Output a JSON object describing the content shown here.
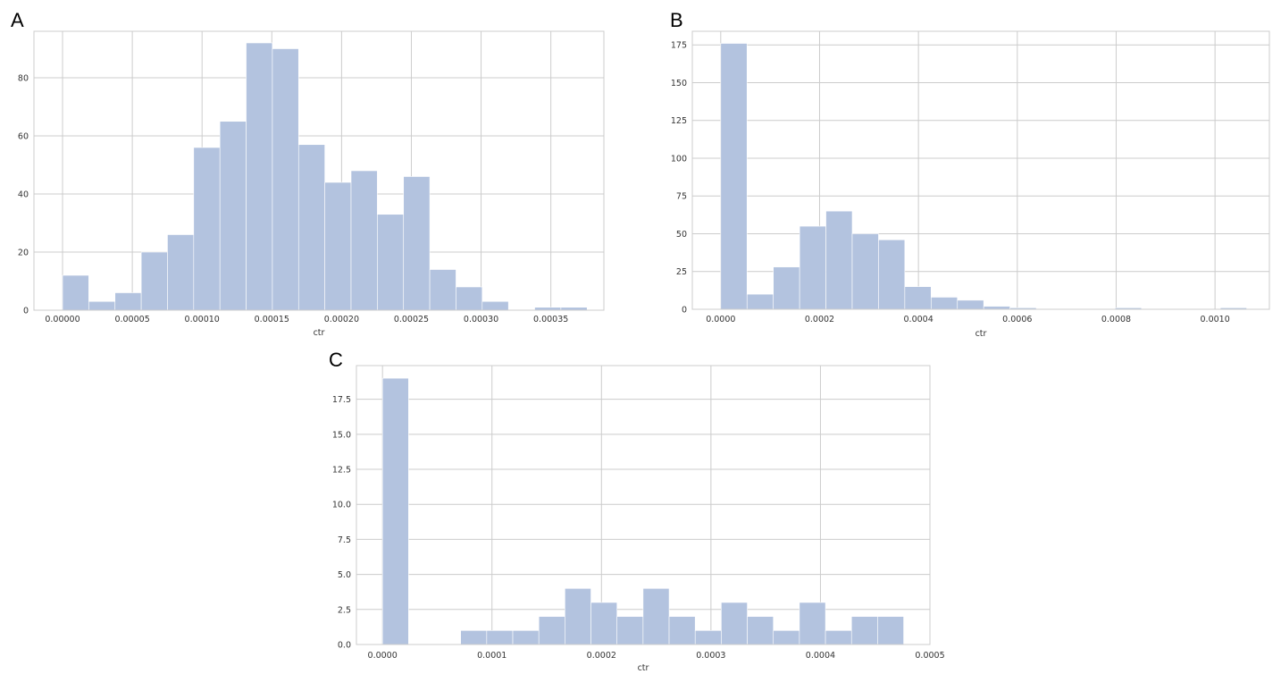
{
  "chart_data": [
    {
      "panel": "A",
      "type": "bar",
      "xlabel": "ctr",
      "ylabel": "",
      "xlim": [
        -2.05e-05,
        0.000388
      ],
      "ylim": [
        0,
        96
      ],
      "xticks": [
        0,
        5e-05,
        0.0001,
        0.00015,
        0.0002,
        0.00025,
        0.0003,
        0.00035
      ],
      "xtick_labels": [
        "0.00000",
        "0.00005",
        "0.00010",
        "0.00015",
        "0.00020",
        "0.00025",
        "0.00030",
        "0.00035"
      ],
      "yticks": [
        0,
        20,
        40,
        60,
        80
      ],
      "ytick_labels": [
        "0",
        "20",
        "40",
        "60",
        "80"
      ],
      "bin_start": 0,
      "bin_width": 1.88e-05,
      "values": [
        12,
        3,
        6,
        20,
        26,
        56,
        65,
        92,
        90,
        57,
        44,
        48,
        33,
        46,
        14,
        8,
        3,
        0,
        1,
        1
      ]
    },
    {
      "panel": "B",
      "type": "bar",
      "xlabel": "ctr",
      "ylabel": "",
      "xlim": [
        -5.75e-05,
        0.00111
      ],
      "ylim": [
        0,
        184
      ],
      "xticks": [
        0,
        0.0002,
        0.0004,
        0.0006,
        0.0008,
        0.001
      ],
      "xtick_labels": [
        "0.0000",
        "0.0002",
        "0.0004",
        "0.0006",
        "0.0008",
        "0.0010"
      ],
      "yticks": [
        0,
        25,
        50,
        75,
        100,
        125,
        150,
        175
      ],
      "ytick_labels": [
        "0",
        "25",
        "50",
        "75",
        "100",
        "125",
        "150",
        "175"
      ],
      "bin_start": 0,
      "bin_width": 5.32e-05,
      "values": [
        176,
        10,
        28,
        55,
        65,
        50,
        46,
        15,
        8,
        6,
        2,
        1,
        0,
        0,
        0,
        1,
        0,
        0,
        0,
        1
      ]
    },
    {
      "panel": "C",
      "type": "bar",
      "xlabel": "ctr",
      "ylabel": "",
      "xlim": [
        -2.38e-05,
        0.0005
      ],
      "ylim": [
        0,
        19.9
      ],
      "xticks": [
        0,
        0.0001,
        0.0002,
        0.0003,
        0.0004,
        0.0005
      ],
      "xtick_labels": [
        "0.0000",
        "0.0001",
        "0.0002",
        "0.0003",
        "0.0004",
        "0.0005"
      ],
      "yticks": [
        0,
        2.5,
        5,
        7.5,
        10,
        12.5,
        15,
        17.5
      ],
      "ytick_labels": [
        "0.0",
        "2.5",
        "5.0",
        "7.5",
        "10.0",
        "12.5",
        "15.0",
        "17.5"
      ],
      "bin_start": 0,
      "bin_width": 2.38e-05,
      "values": [
        19,
        0,
        0,
        1,
        1,
        1,
        2,
        4,
        3,
        2,
        4,
        2,
        1,
        3,
        2,
        1,
        3,
        1,
        2,
        2
      ]
    }
  ]
}
